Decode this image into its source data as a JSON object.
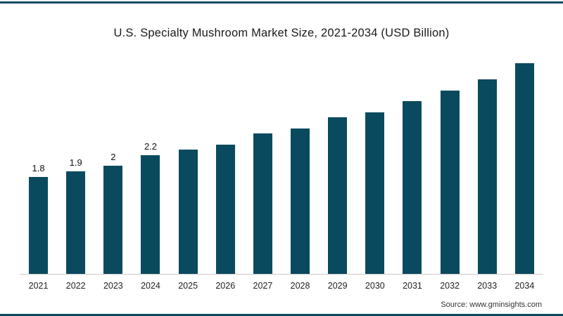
{
  "page": {
    "source": "Source: www.gminsights.com",
    "accent_color": "#0a4a5e",
    "background_color": "#ffffff"
  },
  "chart_data": {
    "type": "bar",
    "title": "U.S. Specialty Mushroom Market Size, 2021-2034 (USD Billion)",
    "categories": [
      "2021",
      "2022",
      "2023",
      "2024",
      "2025",
      "2026",
      "2027",
      "2028",
      "2029",
      "2030",
      "2031",
      "2032",
      "2033",
      "2034"
    ],
    "values": [
      1.8,
      1.9,
      2.0,
      2.2,
      2.3,
      2.4,
      2.6,
      2.7,
      2.9,
      3.0,
      3.2,
      3.4,
      3.6,
      3.9
    ],
    "data_labels": [
      "1.8",
      "1.9",
      "2",
      "2.2",
      "",
      "",
      "",
      "",
      "",
      "",
      "",
      "",
      "",
      ""
    ],
    "bar_color": "#0a4a5e",
    "xlabel": "",
    "ylabel": "",
    "ylim": [
      0,
      4.1
    ],
    "grid": false,
    "legend": false,
    "axis_line_color": "#c9c9c9"
  }
}
